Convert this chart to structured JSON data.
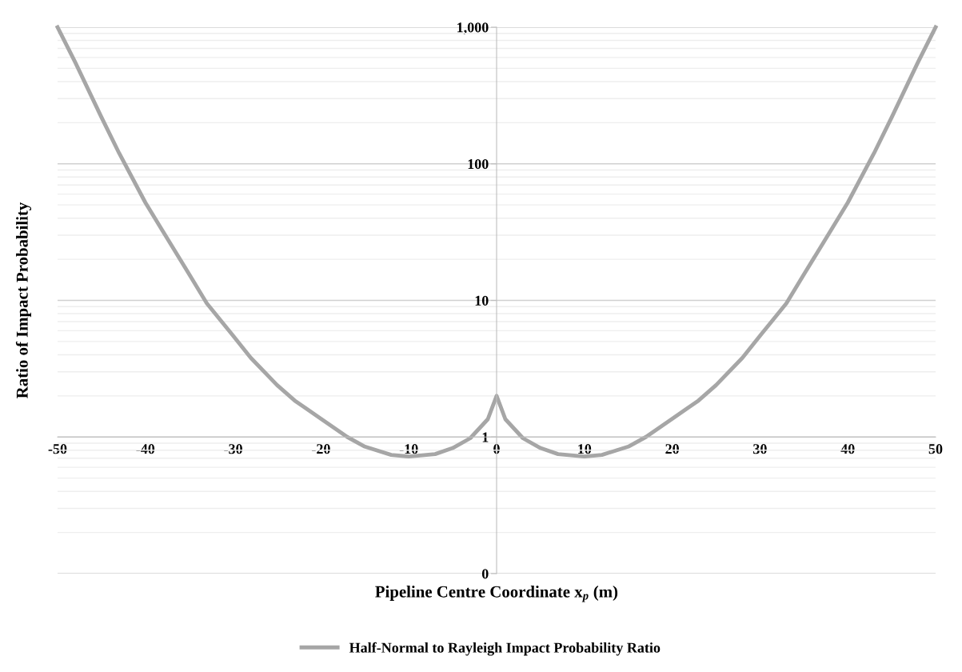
{
  "chart_data": {
    "type": "line",
    "xlabel": "Pipeline Centre Coordinate x$_{p}$ (m)",
    "ylabel": "Ratio of Impact Probability",
    "x": [
      -50,
      -48,
      -45,
      -43,
      -40,
      -38,
      -35,
      -33,
      -30,
      -28,
      -25,
      -23,
      -20,
      -17,
      -15,
      -12,
      -10,
      -7,
      -5,
      -3,
      -1,
      0,
      1,
      3,
      5,
      7,
      10,
      12,
      15,
      17,
      20,
      23,
      25,
      28,
      30,
      33,
      35,
      38,
      40,
      43,
      45,
      48,
      50
    ],
    "series": [
      {
        "name": "Half-Normal to Rayleigh Impact Probability Ratio",
        "color": "#a6a6a6",
        "values": [
          1000,
          555,
          219,
          120,
          52,
          32,
          15.5,
          9.5,
          5.5,
          3.8,
          2.4,
          1.85,
          1.36,
          1.0,
          0.85,
          0.74,
          0.72,
          0.75,
          0.83,
          0.98,
          1.35,
          2,
          1.35,
          0.98,
          0.83,
          0.75,
          0.72,
          0.74,
          0.85,
          1.0,
          1.36,
          1.85,
          2.4,
          3.8,
          5.5,
          9.5,
          15.5,
          32,
          52,
          120,
          219,
          555,
          1000
        ]
      }
    ],
    "log": "y",
    "ylim": [
      0.1,
      1000
    ],
    "yticks": [
      {
        "value": 0.1,
        "label": "0"
      },
      1,
      10,
      100,
      {
        "value": 1000,
        "label": "1,000"
      }
    ],
    "xlim": [
      -50,
      50
    ],
    "xticks": [
      -50,
      -40,
      -30,
      -20,
      -10,
      0,
      10,
      20,
      30,
      40,
      50
    ],
    "grid": "y",
    "legend": "bottom",
    "marker": "none",
    "line_style": "solid"
  }
}
